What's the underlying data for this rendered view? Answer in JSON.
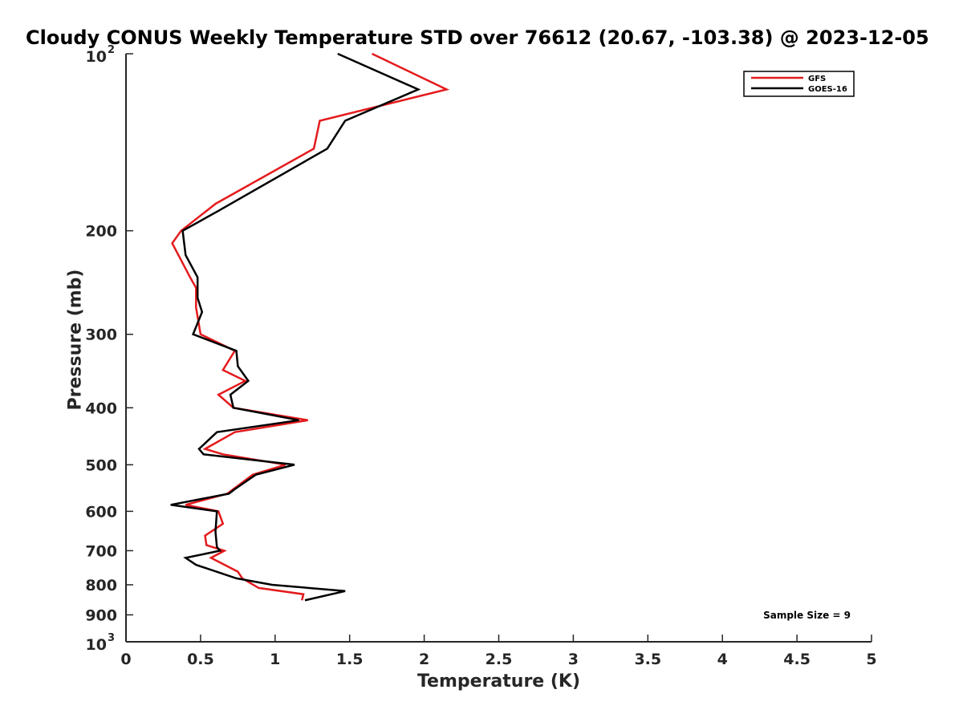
{
  "chart_data": {
    "type": "line",
    "title": "Cloudy CONUS Weekly Temperature STD over 76612 (20.67, -103.38) @ 2023-12-05",
    "xlabel": "Temperature (K)",
    "ylabel": "Pressure (mb)",
    "xlim": [
      0,
      5
    ],
    "ylim": [
      100,
      1000
    ],
    "y_scale": "log",
    "y_reversed": true,
    "grid": false,
    "legend_position": "top-right",
    "x_ticks": [
      "0",
      "0.5",
      "1",
      "1.5",
      "2",
      "2.5",
      "3",
      "3.5",
      "4",
      "4.5",
      "5"
    ],
    "x_tick_values": [
      0,
      0.5,
      1,
      1.5,
      2,
      2.5,
      3,
      3.5,
      4,
      4.5,
      5
    ],
    "y_ticks": [
      {
        "value": 100,
        "base": "10",
        "exp": "2"
      },
      {
        "value": 200,
        "label": "200"
      },
      {
        "value": 300,
        "label": "300"
      },
      {
        "value": 400,
        "label": "400"
      },
      {
        "value": 500,
        "label": "500"
      },
      {
        "value": 600,
        "label": "600"
      },
      {
        "value": 700,
        "label": "700"
      },
      {
        "value": 800,
        "label": "800"
      },
      {
        "value": 900,
        "label": "900"
      },
      {
        "value": 1000,
        "base": "10",
        "exp": "3"
      }
    ],
    "annotation": "Sample Size = 9",
    "series": [
      {
        "name": "GFS",
        "color": "#e41a1c",
        "points": [
          [
            1.65,
            100
          ],
          [
            2.15,
            115
          ],
          [
            1.3,
            130
          ],
          [
            1.26,
            145
          ],
          [
            0.6,
            180
          ],
          [
            0.37,
            200
          ],
          [
            0.31,
            210
          ],
          [
            0.43,
            240
          ],
          [
            0.47,
            250
          ],
          [
            0.47,
            270
          ],
          [
            0.5,
            300
          ],
          [
            0.73,
            320
          ],
          [
            0.65,
            345
          ],
          [
            0.8,
            360
          ],
          [
            0.62,
            380
          ],
          [
            0.72,
            400
          ],
          [
            1.22,
            420
          ],
          [
            0.73,
            440
          ],
          [
            0.53,
            470
          ],
          [
            0.65,
            480
          ],
          [
            1.07,
            500
          ],
          [
            0.85,
            520
          ],
          [
            0.72,
            550
          ],
          [
            0.68,
            560
          ],
          [
            0.4,
            585
          ],
          [
            0.62,
            600
          ],
          [
            0.65,
            630
          ],
          [
            0.53,
            660
          ],
          [
            0.54,
            685
          ],
          [
            0.66,
            700
          ],
          [
            0.57,
            720
          ],
          [
            0.75,
            760
          ],
          [
            0.78,
            780
          ],
          [
            0.89,
            810
          ],
          [
            1.19,
            830
          ],
          [
            1.18,
            850
          ]
        ]
      },
      {
        "name": "GOES-16",
        "color": "#000000",
        "points": [
          [
            1.42,
            100
          ],
          [
            1.96,
            115
          ],
          [
            1.47,
            130
          ],
          [
            1.35,
            145
          ],
          [
            0.62,
            185
          ],
          [
            0.38,
            200
          ],
          [
            0.4,
            220
          ],
          [
            0.48,
            240
          ],
          [
            0.48,
            260
          ],
          [
            0.51,
            275
          ],
          [
            0.45,
            300
          ],
          [
            0.74,
            320
          ],
          [
            0.75,
            340
          ],
          [
            0.82,
            360
          ],
          [
            0.7,
            380
          ],
          [
            0.72,
            400
          ],
          [
            1.16,
            420
          ],
          [
            0.61,
            440
          ],
          [
            0.49,
            470
          ],
          [
            0.52,
            480
          ],
          [
            1.13,
            500
          ],
          [
            0.87,
            520
          ],
          [
            0.73,
            550
          ],
          [
            0.69,
            560
          ],
          [
            0.3,
            585
          ],
          [
            0.61,
            600
          ],
          [
            0.6,
            650
          ],
          [
            0.61,
            690
          ],
          [
            0.63,
            700
          ],
          [
            0.4,
            720
          ],
          [
            0.47,
            740
          ],
          [
            0.74,
            780
          ],
          [
            0.98,
            800
          ],
          [
            1.47,
            820
          ],
          [
            1.2,
            850
          ]
        ]
      }
    ]
  }
}
